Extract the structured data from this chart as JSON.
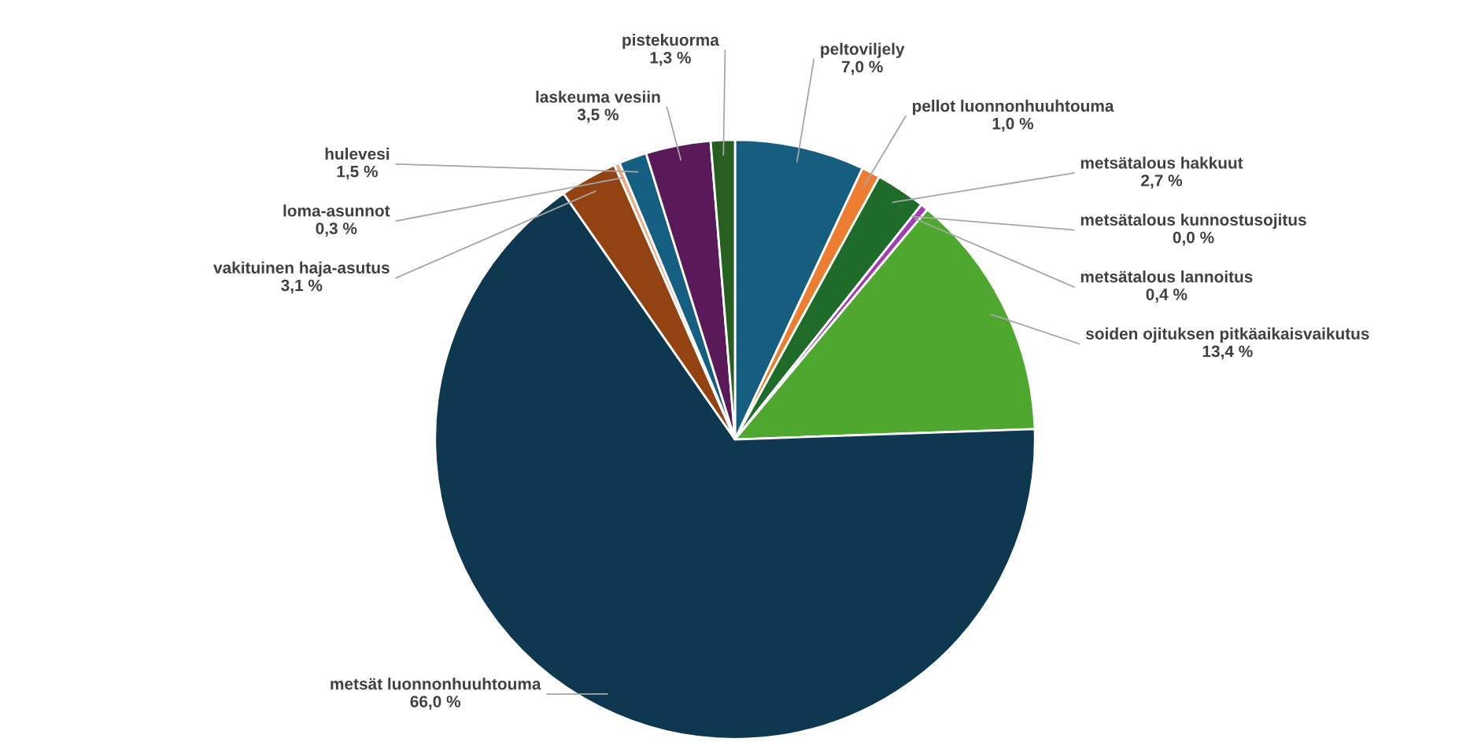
{
  "chart_data": {
    "type": "pie",
    "categories": [
      "peltoviljely",
      "pellot luonnonhuuhtouma",
      "metsätalous hakkuut",
      "metsätalous kunnostusojitus",
      "metsätalous lannoitus",
      "soiden ojituksen pitkäaikaisvaikutus",
      "metsät luonnonhuuhtouma",
      "vakituinen haja-asutus",
      "loma-asunnot",
      "hulevesi",
      "laskeuma vesiin",
      "pistekuorma"
    ],
    "values": [
      7.0,
      1.0,
      2.7,
      0.0,
      0.4,
      13.4,
      66.0,
      3.1,
      0.3,
      1.5,
      3.5,
      1.3
    ],
    "value_labels": [
      "7,0 %",
      "1,0 %",
      "2,7 %",
      "0,0 %",
      "0,4 %",
      "13,4 %",
      "66,0 %",
      "3,1 %",
      "0,3 %",
      "1,5 %",
      "3,5 %",
      "1,3 %"
    ],
    "colors": [
      "#165e80",
      "#ed7d31",
      "#1e6b2a",
      "#0f9ed5",
      "#a23bb5",
      "#4ea72e",
      "#0e384f",
      "#934212",
      "#f1a983",
      "#156082",
      "#5a1a5a",
      "#265f1f"
    ]
  }
}
